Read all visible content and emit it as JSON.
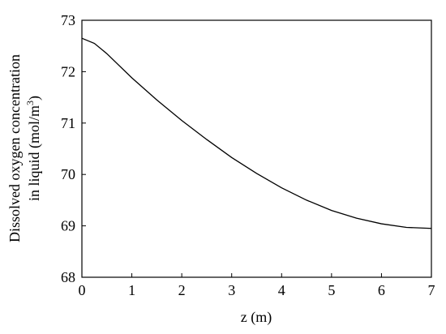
{
  "chart_data": {
    "type": "line",
    "xlabel": "z (m)",
    "ylabel": [
      "Dissolved oxygen concentration",
      "in liquid (mol/m",
      "3",
      ")"
    ],
    "x": [
      0,
      0.25,
      0.5,
      1,
      1.5,
      2,
      2.5,
      3,
      3.5,
      4,
      4.5,
      5,
      5.5,
      6,
      6.5,
      7
    ],
    "series": [
      {
        "color": "#000000",
        "values": [
          72.65,
          72.55,
          72.35,
          71.88,
          71.45,
          71.05,
          70.68,
          70.33,
          70.02,
          69.74,
          69.5,
          69.3,
          69.15,
          69.04,
          68.97,
          68.95
        ]
      }
    ],
    "xlim": [
      0,
      7
    ],
    "xticks": [
      0,
      1,
      2,
      3,
      4,
      5,
      6,
      7
    ],
    "ylim": [
      68,
      73
    ],
    "yticks": [
      68,
      69,
      70,
      71,
      72,
      73
    ]
  }
}
